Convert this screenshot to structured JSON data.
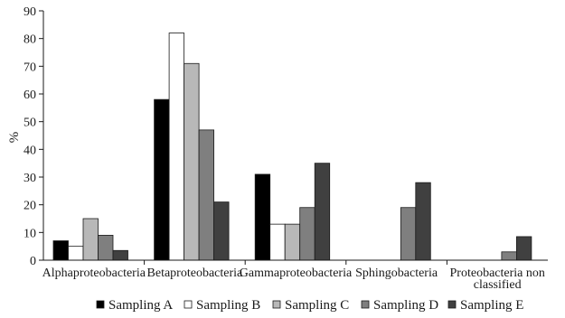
{
  "chart_data": {
    "type": "bar",
    "title": "",
    "xlabel": "",
    "ylabel": "%",
    "ylim": [
      0,
      90
    ],
    "yticks": [
      0,
      10,
      20,
      30,
      40,
      50,
      60,
      70,
      80,
      90
    ],
    "grid": false,
    "legend_position": "bottom",
    "categories": [
      [
        "Alphaproteobacteria"
      ],
      [
        "Betaproteobacteria"
      ],
      [
        "Gammaproteobacteria"
      ],
      [
        "Sphingobacteria"
      ],
      [
        "Proteobacteria non",
        "classified"
      ]
    ],
    "series": [
      {
        "name": "Sampling A",
        "color": "#000000",
        "values": [
          7,
          58,
          31,
          0,
          0
        ]
      },
      {
        "name": "Sampling B",
        "color": "#ffffff",
        "values": [
          5,
          82,
          13,
          0,
          0
        ]
      },
      {
        "name": "Sampling C",
        "color": "#b8b8b8",
        "values": [
          15,
          71,
          13,
          0,
          0
        ]
      },
      {
        "name": "Sampling D",
        "color": "#7f7f7f",
        "values": [
          9,
          47,
          19,
          19,
          3
        ]
      },
      {
        "name": "Sampling E",
        "color": "#404040",
        "values": [
          3.5,
          21,
          35,
          28,
          8.5
        ]
      }
    ]
  }
}
